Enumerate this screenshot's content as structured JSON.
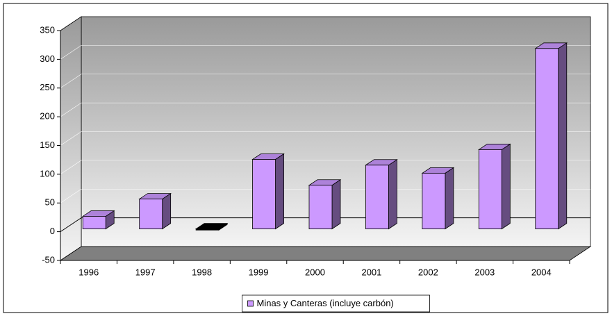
{
  "chart_data": {
    "type": "bar3d",
    "categories": [
      "1996",
      "1997",
      "1998",
      "1999",
      "2000",
      "2001",
      "2002",
      "2003",
      "2004"
    ],
    "series": [
      {
        "name": "Minas y Canteras (incluye carbón)",
        "color": "#cc99ff",
        "values": [
          22,
          52,
          -2,
          121,
          76,
          111,
          97,
          138,
          314
        ]
      }
    ],
    "invert_negative_color": "#000000",
    "ylim": [
      -50,
      350
    ],
    "yticks": [
      -50,
      0,
      50,
      100,
      150,
      200,
      250,
      300,
      350
    ],
    "grid": true,
    "legend": "bottom"
  }
}
